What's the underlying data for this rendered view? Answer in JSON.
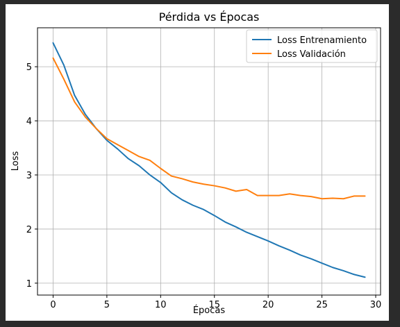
{
  "chart_data": {
    "type": "line",
    "title": "Pérdida vs Épocas",
    "xlabel": "Épocas",
    "ylabel": "Loss",
    "xlim": [
      -1.45,
      30.45
    ],
    "ylim": [
      0.78,
      5.72
    ],
    "xticks": [
      0,
      5,
      10,
      15,
      20,
      25,
      30
    ],
    "yticks": [
      1,
      2,
      3,
      4,
      5
    ],
    "grid": true,
    "legend_position": "top-right",
    "x": [
      0,
      1,
      2,
      3,
      4,
      5,
      6,
      7,
      8,
      9,
      10,
      11,
      12,
      13,
      14,
      15,
      16,
      17,
      18,
      19,
      20,
      21,
      22,
      23,
      24,
      25,
      26,
      27,
      28,
      29
    ],
    "series": [
      {
        "name": "Loss Entrenamiento",
        "color": "#1f77b4",
        "values": [
          5.44,
          5.03,
          4.47,
          4.12,
          3.86,
          3.64,
          3.48,
          3.3,
          3.17,
          3.0,
          2.86,
          2.67,
          2.54,
          2.44,
          2.36,
          2.25,
          2.13,
          2.04,
          1.94,
          1.86,
          1.78,
          1.69,
          1.61,
          1.52,
          1.45,
          1.37,
          1.29,
          1.23,
          1.16,
          1.11
        ]
      },
      {
        "name": "Loss Validación",
        "color": "#ff7f0e",
        "values": [
          5.16,
          4.77,
          4.35,
          4.07,
          3.86,
          3.67,
          3.56,
          3.45,
          3.34,
          3.27,
          3.12,
          2.98,
          2.93,
          2.87,
          2.83,
          2.8,
          2.76,
          2.7,
          2.73,
          2.62,
          2.62,
          2.62,
          2.65,
          2.62,
          2.6,
          2.56,
          2.57,
          2.56,
          2.61,
          2.61
        ]
      }
    ]
  }
}
